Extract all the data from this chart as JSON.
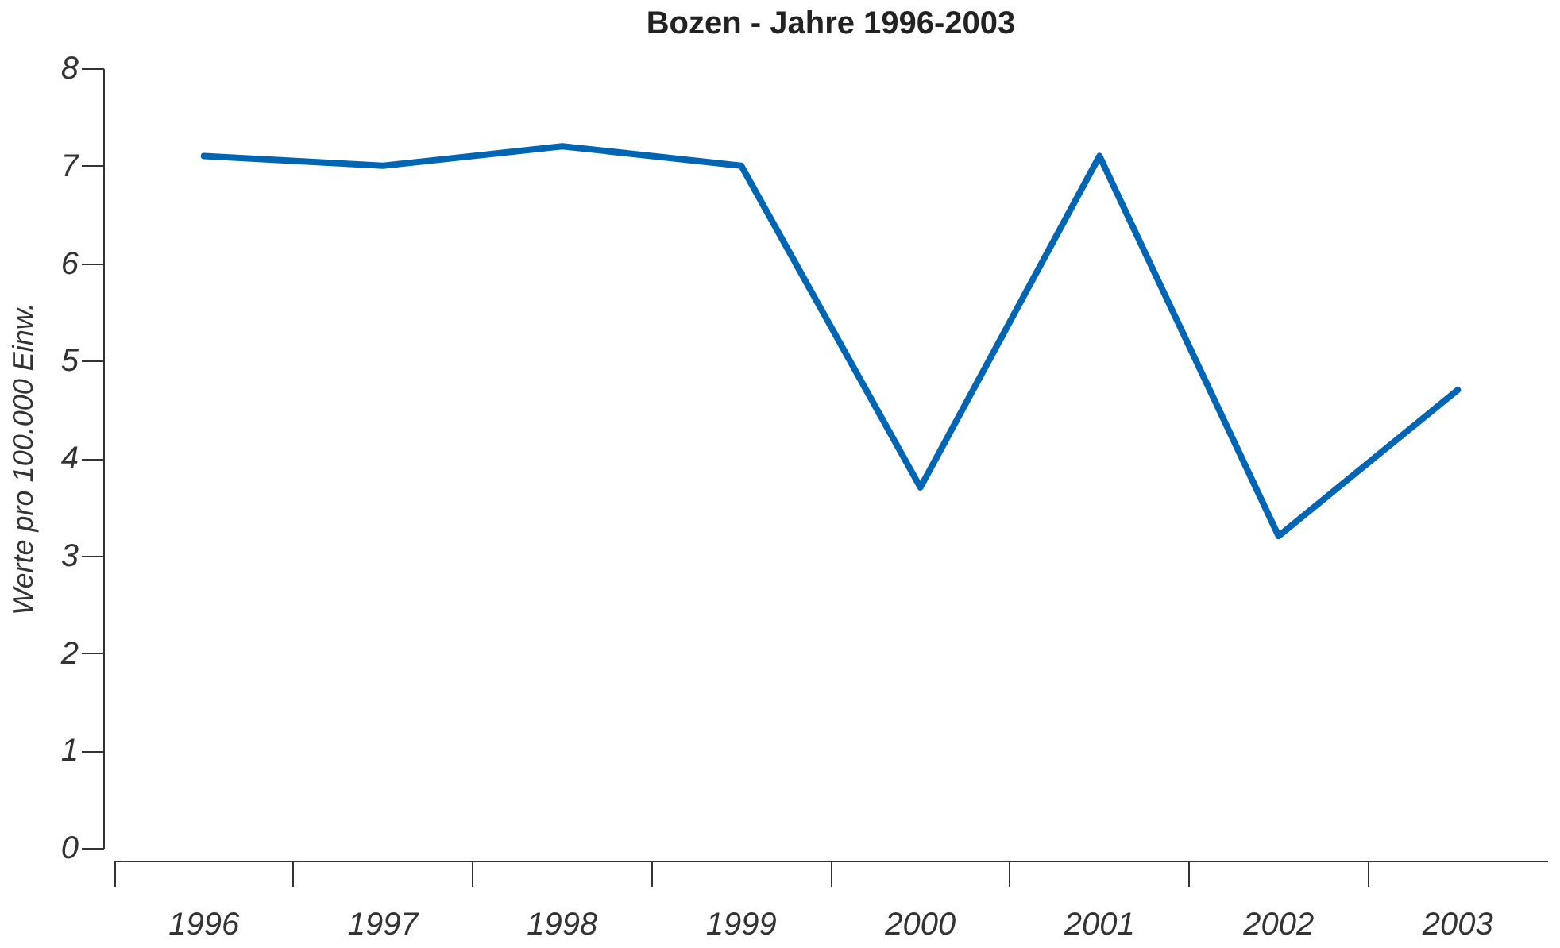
{
  "chart_data": {
    "type": "line",
    "title": "Bozen - Jahre 1996-2003",
    "ylabel": "Werte pro 100.000 Einw.",
    "categories": [
      "1996",
      "1997",
      "1998",
      "1999",
      "2000",
      "2001",
      "2002",
      "2003"
    ],
    "series": [
      {
        "color": "#0066b3",
        "values": [
          7.1,
          7.0,
          7.2,
          7.0,
          3.7,
          7.1,
          3.2,
          4.7
        ]
      }
    ],
    "ylim": [
      0,
      8
    ],
    "yticks": [
      0,
      1,
      2,
      3,
      4,
      5,
      6,
      7,
      8
    ],
    "grid": false,
    "marker": "none",
    "line_style": "solid"
  }
}
